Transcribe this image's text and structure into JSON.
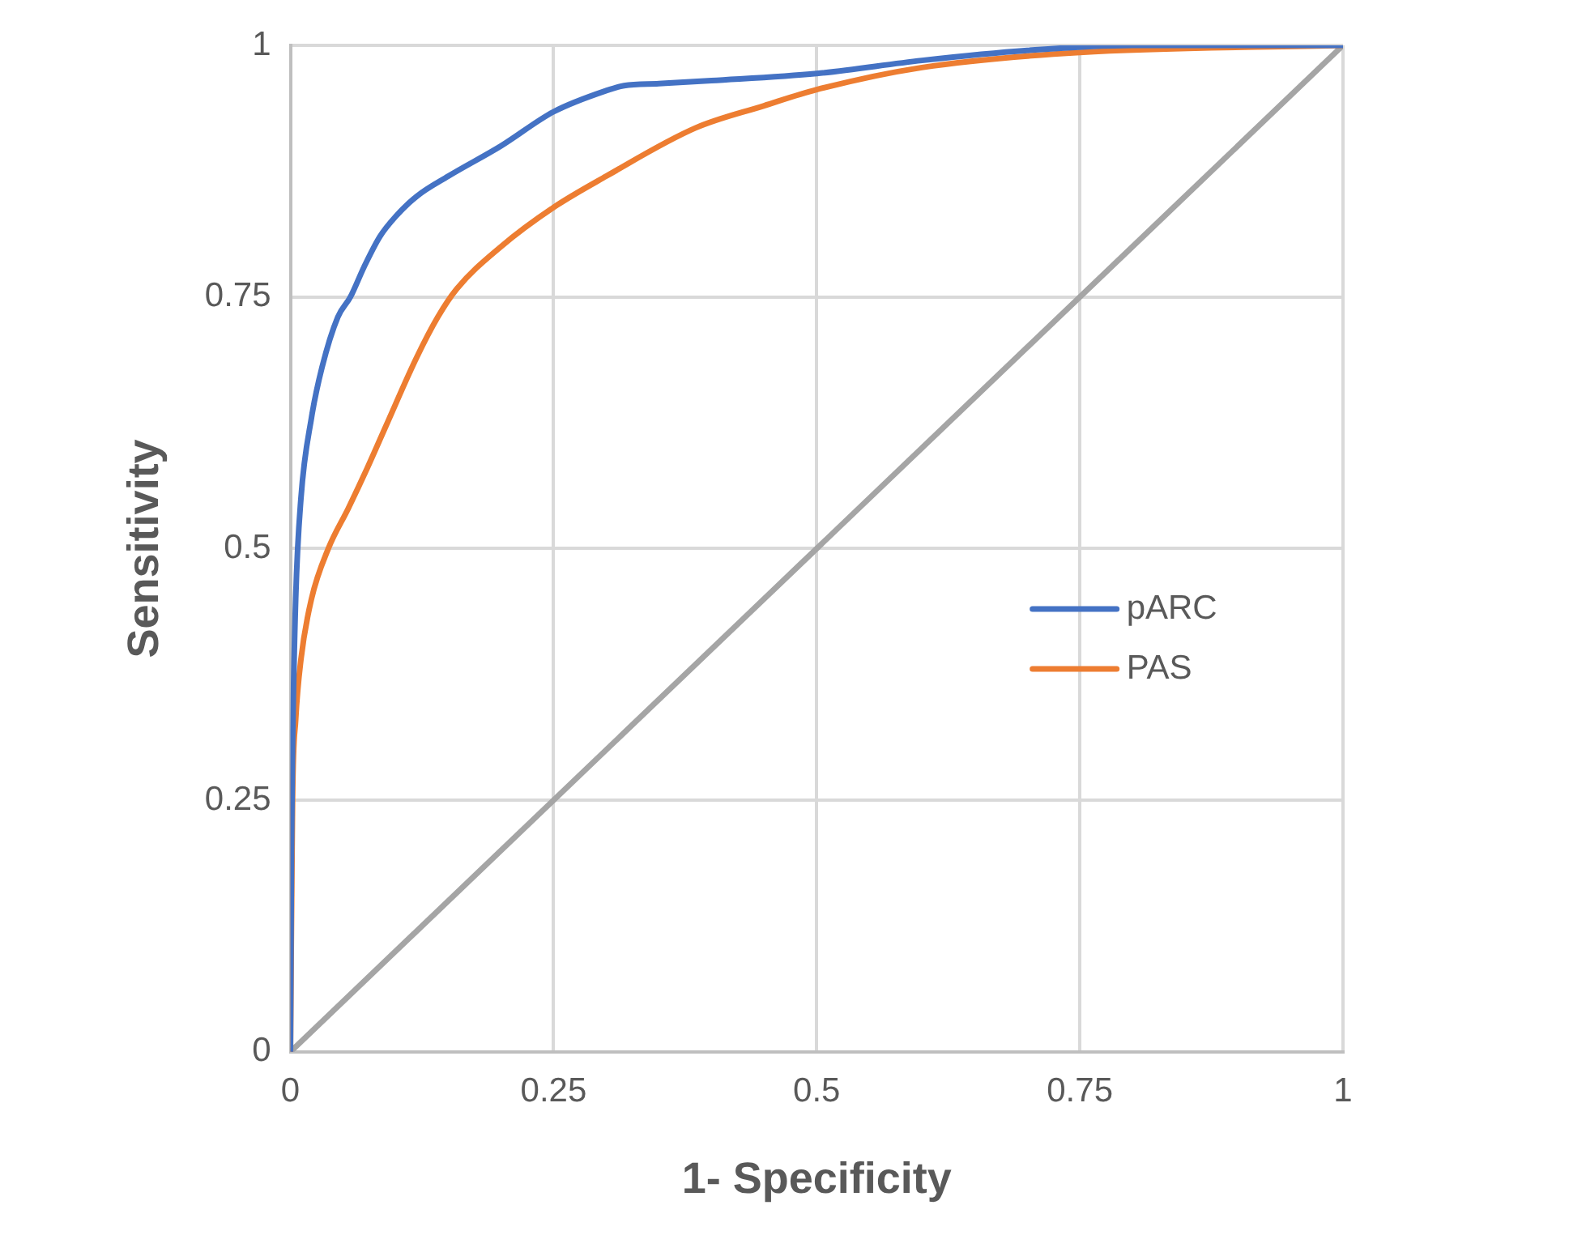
{
  "chart_data": {
    "type": "line",
    "xlabel": "1- Specificity",
    "ylabel": "Sensitivity",
    "xlim": [
      0,
      1
    ],
    "xticks": [
      0,
      0.25,
      0.5,
      0.75,
      1
    ],
    "ylim": [
      0,
      1
    ],
    "yticks": [
      0,
      0.25,
      0.5,
      0.75,
      1
    ],
    "grid": true,
    "legend": "right",
    "marker": "none",
    "line_style": "solid",
    "series": [
      {
        "name": "pARC",
        "color": "#4472c4",
        "x": [
          0,
          0.001,
          0.002,
          0.005,
          0.01,
          0.02,
          0.03,
          0.045,
          0.057,
          0.07,
          0.085,
          0.1,
          0.12,
          0.15,
          0.2,
          0.25,
          0.3,
          0.317,
          0.35,
          0.4,
          0.5,
          0.6,
          0.7,
          0.8,
          0.9,
          1
        ],
        "values": [
          0,
          0.2,
          0.3,
          0.45,
          0.55,
          0.63,
          0.68,
          0.73,
          0.75,
          0.78,
          0.81,
          0.83,
          0.85,
          0.87,
          0.9,
          0.934,
          0.955,
          0.96,
          0.962,
          0.965,
          0.972,
          0.985,
          0.995,
          1,
          1,
          1
        ]
      },
      {
        "name": "PAS",
        "color": "#ed7d31",
        "x": [
          0,
          0.002,
          0.005,
          0.01,
          0.02,
          0.036,
          0.055,
          0.073,
          0.09,
          0.12,
          0.14,
          0.158,
          0.2,
          0.25,
          0.3,
          0.385,
          0.45,
          0.5,
          0.6,
          0.75,
          1
        ],
        "values": [
          0,
          0.25,
          0.33,
          0.39,
          0.45,
          0.5,
          0.54,
          0.58,
          0.62,
          0.69,
          0.73,
          0.758,
          0.8,
          0.839,
          0.87,
          0.918,
          0.94,
          0.956,
          0.978,
          0.993,
          1
        ]
      },
      {
        "color": "#a5a5a5",
        "x": [
          0,
          1
        ],
        "values": [
          0,
          1
        ]
      }
    ]
  }
}
